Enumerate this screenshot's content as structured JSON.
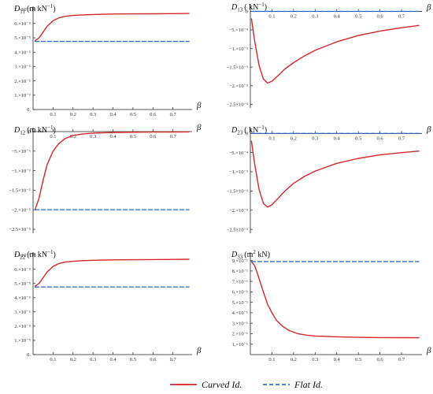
{
  "chart_data": [
    {
      "id": "D11",
      "type": "line",
      "title_symbol": "D",
      "title_sub": "11",
      "title_sup": "",
      "title_unit_pre": "(m kN",
      "title_unit_post": ")",
      "xlabel": "β",
      "x_ticks": [
        0.1,
        0.2,
        0.3,
        0.4,
        0.5,
        0.6,
        0.7
      ],
      "xlim": [
        0,
        0.78
      ],
      "ylim": [
        0,
        7.2e-05
      ],
      "y_ticks": [
        {
          "v": 0,
          "label": "0."
        },
        {
          "v": 1e-05,
          "label": "1.×10⁻⁵"
        },
        {
          "v": 2e-05,
          "label": "2.×10⁻⁵"
        },
        {
          "v": 3e-05,
          "label": "3.×10⁻⁵"
        },
        {
          "v": 4e-05,
          "label": "4.×10⁻⁵"
        },
        {
          "v": 5e-05,
          "label": "5.×10⁻⁵"
        },
        {
          "v": 6e-05,
          "label": "6.×10⁻⁵"
        },
        {
          "v": 7e-05,
          "label": "7.×10⁻⁵"
        }
      ],
      "series": [
        {
          "name": "Curved Id.",
          "x": [
            0.01,
            0.03,
            0.05,
            0.07,
            0.1,
            0.13,
            0.16,
            0.2,
            0.25,
            0.3,
            0.4,
            0.5,
            0.6,
            0.7,
            0.78
          ],
          "y": [
            4.8e-05,
            5e-05,
            5.4e-05,
            5.8e-05,
            6.2e-05,
            6.4e-05,
            6.5e-05,
            6.56e-05,
            6.6e-05,
            6.63e-05,
            6.66e-05,
            6.67e-05,
            6.68e-05,
            6.69e-05,
            6.7e-05
          ]
        },
        {
          "name": "Flat Id.",
          "x": [
            0.01,
            0.78
          ],
          "y": [
            4.75e-05,
            4.75e-05
          ]
        }
      ]
    },
    {
      "id": "D13",
      "type": "line",
      "title_symbol": "D",
      "title_sub": "13",
      "title_sup": "",
      "title_unit_pre": "( kN",
      "title_unit_post": ")",
      "xlabel": "β",
      "x_ticks": [
        0.1,
        0.2,
        0.3,
        0.4,
        0.5,
        0.6,
        0.7
      ],
      "xlim": [
        0,
        0.78
      ],
      "ylim": [
        -0.0026,
        0.0002
      ],
      "y_ticks": [
        {
          "v": 0,
          "label": "0"
        },
        {
          "v": -0.0005,
          "label": "−5.×10⁻⁴"
        },
        {
          "v": -0.001,
          "label": "−1.×10⁻³"
        },
        {
          "v": -0.0015,
          "label": "−1.5×10⁻³"
        },
        {
          "v": -0.002,
          "label": "−2.×10⁻³"
        },
        {
          "v": -0.0025,
          "label": "−2.5×10⁻³"
        }
      ],
      "series": [
        {
          "name": "Curved Id.",
          "x": [
            0.005,
            0.02,
            0.04,
            0.06,
            0.08,
            0.1,
            0.13,
            0.16,
            0.2,
            0.25,
            0.3,
            0.4,
            0.5,
            0.6,
            0.7,
            0.78
          ],
          "y": [
            -0.0002,
            -0.0008,
            -0.00145,
            -0.00182,
            -0.00193,
            -0.00188,
            -0.00172,
            -0.00155,
            -0.00138,
            -0.0012,
            -0.00105,
            -0.00082,
            -0.00065,
            -0.00053,
            -0.00044,
            -0.00038
          ]
        },
        {
          "name": "Flat Id.",
          "x": [
            0.005,
            0.78
          ],
          "y": [
            0,
            0
          ]
        }
      ]
    },
    {
      "id": "D12",
      "type": "line",
      "title_symbol": "D",
      "title_sub": "12",
      "title_sup": "",
      "title_unit_pre": "(m kN",
      "title_unit_post": ")",
      "xlabel": "β",
      "x_ticks": [
        0.1,
        0.2,
        0.3,
        0.4,
        0.5,
        0.6,
        0.7
      ],
      "xlim": [
        0,
        0.78
      ],
      "ylim": [
        -2.6e-05,
        1e-06
      ],
      "y_ticks": [
        {
          "v": 0,
          "label": "0"
        },
        {
          "v": -5e-06,
          "label": "−5.×10⁻⁶"
        },
        {
          "v": -1e-05,
          "label": "−1.×10⁻⁵"
        },
        {
          "v": -1.5e-05,
          "label": "−1.5×10⁻⁵"
        },
        {
          "v": -2e-05,
          "label": "−2.×10⁻⁵"
        },
        {
          "v": -2.5e-05,
          "label": "−2.5×10⁻⁵"
        }
      ],
      "series": [
        {
          "name": "Curved Id.",
          "x": [
            0.01,
            0.03,
            0.05,
            0.07,
            0.1,
            0.13,
            0.16,
            0.2,
            0.25,
            0.3,
            0.4,
            0.5,
            0.6,
            0.7,
            0.78
          ],
          "y": [
            -2e-05,
            -1.7e-05,
            -1.25e-05,
            -8.5e-06,
            -5e-06,
            -3e-06,
            -1.8e-06,
            -1e-06,
            -6e-07,
            -4e-07,
            -2.5e-07,
            -1.7e-07,
            -1.2e-07,
            -1e-07,
            -8e-08
          ]
        },
        {
          "name": "Flat Id.",
          "x": [
            0.01,
            0.78
          ],
          "y": [
            -2e-05,
            -2e-05
          ]
        }
      ]
    },
    {
      "id": "D23",
      "type": "line",
      "title_symbol": "D",
      "title_sub": "23",
      "title_sup": "",
      "title_unit_pre": "( kN",
      "title_unit_post": ")",
      "xlabel": "β",
      "x_ticks": [
        0.1,
        0.2,
        0.3,
        0.4,
        0.5,
        0.6,
        0.7
      ],
      "xlim": [
        0,
        0.78
      ],
      "ylim": [
        -0.0026,
        0.00015
      ],
      "y_ticks": [
        {
          "v": 0,
          "label": "0"
        },
        {
          "v": -0.0005,
          "label": "−5.×10⁻⁴"
        },
        {
          "v": -0.001,
          "label": "−1.×10⁻³"
        },
        {
          "v": -0.0015,
          "label": "−1.5×10⁻³"
        },
        {
          "v": -0.002,
          "label": "−2.×10⁻³"
        },
        {
          "v": -0.0025,
          "label": "−2.5×10⁻³"
        }
      ],
      "series": [
        {
          "name": "Curved Id.",
          "x": [
            0.005,
            0.02,
            0.04,
            0.06,
            0.08,
            0.1,
            0.13,
            0.16,
            0.2,
            0.25,
            0.3,
            0.4,
            0.5,
            0.6,
            0.7,
            0.78
          ],
          "y": [
            -0.0002,
            -0.0008,
            -0.00145,
            -0.00182,
            -0.00192,
            -0.00186,
            -0.00168,
            -0.0015,
            -0.0013,
            -0.00112,
            -0.00098,
            -0.00078,
            -0.00065,
            -0.00056,
            -0.0005,
            -0.00046
          ]
        },
        {
          "name": "Flat Id.",
          "x": [
            0.005,
            0.78
          ],
          "y": [
            0,
            0
          ]
        }
      ]
    },
    {
      "id": "D22",
      "type": "line",
      "title_symbol": "D",
      "title_sub": "22",
      "title_sup": "",
      "title_unit_pre": "(m kN",
      "title_unit_post": ")",
      "xlabel": "β",
      "x_ticks": [
        0.1,
        0.2,
        0.3,
        0.4,
        0.5,
        0.6,
        0.7
      ],
      "xlim": [
        0,
        0.78
      ],
      "ylim": [
        0,
        7.2e-05
      ],
      "y_ticks": [
        {
          "v": 0,
          "label": "0."
        },
        {
          "v": 1e-05,
          "label": "1.×10⁻⁵"
        },
        {
          "v": 2e-05,
          "label": "2.×10⁻⁵"
        },
        {
          "v": 3e-05,
          "label": "3.×10⁻⁵"
        },
        {
          "v": 4e-05,
          "label": "4.×10⁻⁵"
        },
        {
          "v": 5e-05,
          "label": "5.×10⁻⁵"
        },
        {
          "v": 6e-05,
          "label": "6.×10⁻⁵"
        },
        {
          "v": 7e-05,
          "label": "7.×10⁻⁵"
        }
      ],
      "series": [
        {
          "name": "Curved Id.",
          "x": [
            0.01,
            0.03,
            0.05,
            0.07,
            0.1,
            0.13,
            0.16,
            0.2,
            0.25,
            0.3,
            0.4,
            0.5,
            0.6,
            0.7,
            0.78
          ],
          "y": [
            4.8e-05,
            5e-05,
            5.4e-05,
            5.8e-05,
            6.2e-05,
            6.4e-05,
            6.5e-05,
            6.56e-05,
            6.6e-05,
            6.63e-05,
            6.66e-05,
            6.67e-05,
            6.68e-05,
            6.69e-05,
            6.7e-05
          ]
        },
        {
          "name": "Flat Id.",
          "x": [
            0.01,
            0.78
          ],
          "y": [
            4.75e-05,
            4.75e-05
          ]
        }
      ]
    },
    {
      "id": "D33",
      "type": "line",
      "title_symbol": "D",
      "title_sub": "33",
      "title_sup": "2",
      "title_unit_pre": "(m",
      "title_unit_post": " kN)",
      "xlabel": "β",
      "x_ticks": [
        0.1,
        0.2,
        0.3,
        0.4,
        0.5,
        0.6,
        0.7
      ],
      "xlim": [
        0,
        0.78
      ],
      "ylim": [
        0,
        0.98
      ],
      "y_ticks": [
        {
          "v": 0.1,
          "label": "1.×10⁻¹"
        },
        {
          "v": 0.2,
          "label": "2.×10⁻¹"
        },
        {
          "v": 0.3,
          "label": "3.×10⁻¹"
        },
        {
          "v": 0.4,
          "label": "4.×10⁻¹"
        },
        {
          "v": 0.5,
          "label": "5.×10⁻¹"
        },
        {
          "v": 0.6,
          "label": "6.×10⁻¹"
        },
        {
          "v": 0.7,
          "label": "7.×10⁻¹"
        },
        {
          "v": 0.8,
          "label": "8.×10⁻¹"
        },
        {
          "v": 0.9,
          "label": "9.×10⁻¹"
        }
      ],
      "series": [
        {
          "name": "Curved Id.",
          "x": [
            0.005,
            0.02,
            0.04,
            0.06,
            0.08,
            0.1,
            0.12,
            0.15,
            0.18,
            0.22,
            0.26,
            0.3,
            0.4,
            0.5,
            0.6,
            0.7,
            0.78
          ],
          "y": [
            0.89,
            0.85,
            0.73,
            0.6,
            0.48,
            0.4,
            0.33,
            0.27,
            0.23,
            0.2,
            0.186,
            0.178,
            0.17,
            0.165,
            0.163,
            0.162,
            0.161
          ]
        },
        {
          "name": "Flat Id.",
          "x": [
            0.005,
            0.78
          ],
          "y": [
            0.89,
            0.89
          ]
        }
      ]
    }
  ],
  "legend": {
    "items": [
      {
        "label": "Curved Id.",
        "color": "#d62728",
        "style": "solid"
      },
      {
        "label": "Flat Id.",
        "color": "#2f6fd6",
        "style": "dashed"
      }
    ]
  },
  "colors": {
    "curved": "#d62728",
    "flat": "#2f6fd6",
    "axis": "#222222"
  }
}
